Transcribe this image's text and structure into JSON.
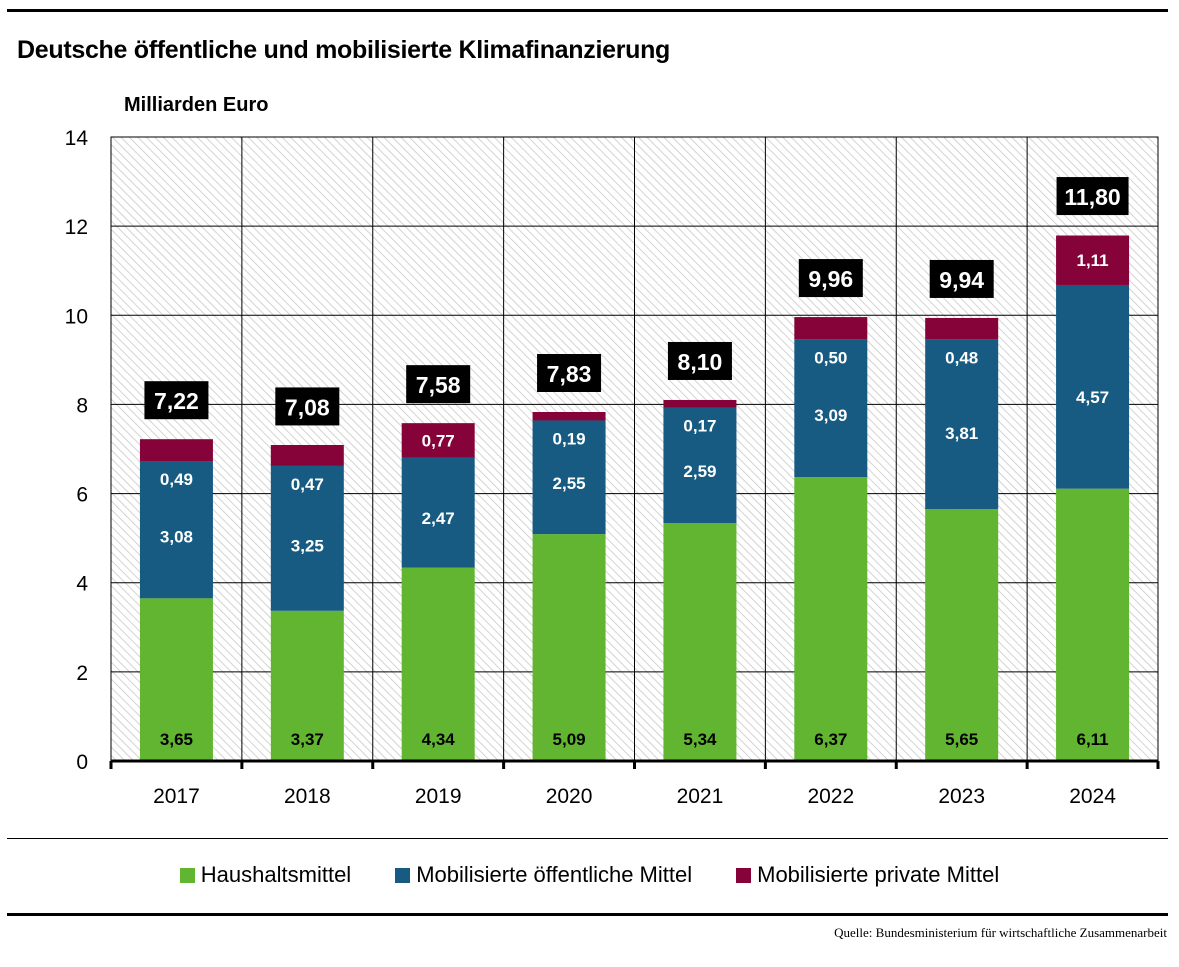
{
  "title": "Deutsche öffentliche und mobilisierte Klimafinanzierung",
  "source": "Quelle: Bundesministerium für wirtschaftliche Zusammenarbeit",
  "colors": {
    "haushalt": "#62b530",
    "oeffentlich": "#175b82",
    "privat": "#86033a",
    "total_box": "#000000"
  },
  "chart_data": {
    "type": "bar",
    "stacked": true,
    "title": "Deutsche öffentliche und mobilisierte Klimafinanzierung",
    "ylabel": "Milliarden Euro",
    "xlabel": "",
    "ylim": [
      0,
      14
    ],
    "yticks": [
      0,
      2,
      4,
      6,
      8,
      10,
      12,
      14
    ],
    "grid": true,
    "legend_position": "bottom",
    "categories": [
      "2017",
      "2018",
      "2019",
      "2020",
      "2021",
      "2022",
      "2023",
      "2024"
    ],
    "series": [
      {
        "name": "Haushaltsmittel",
        "color_key": "haushalt",
        "values": [
          3.65,
          3.37,
          4.34,
          5.09,
          5.34,
          6.37,
          5.65,
          6.11
        ],
        "labels": [
          "3,65",
          "3,37",
          "4,34",
          "5,09",
          "5,34",
          "6,37",
          "5,65",
          "6,11"
        ]
      },
      {
        "name": "Mobilisierte öffentliche Mittel",
        "color_key": "oeffentlich",
        "values": [
          3.08,
          3.25,
          2.47,
          2.55,
          2.59,
          3.09,
          3.81,
          4.57
        ],
        "labels": [
          "3,08",
          "3,25",
          "2,47",
          "2,55",
          "2,59",
          "3,09",
          "3,81",
          "4,57"
        ]
      },
      {
        "name": "Mobilisierte private Mittel",
        "color_key": "privat",
        "values": [
          0.49,
          0.47,
          0.77,
          0.19,
          0.17,
          0.5,
          0.48,
          1.11
        ],
        "labels": [
          "0,49",
          "0,47",
          "0,77",
          "0,19",
          "0,17",
          "0,50",
          "0,48",
          "1,11"
        ]
      }
    ],
    "totals": [
      7.22,
      7.08,
      7.58,
      7.83,
      8.1,
      9.96,
      9.94,
      11.8
    ],
    "total_labels": [
      "7,22",
      "7,08",
      "7,58",
      "7,83",
      "8,10",
      "9,96",
      "9,94",
      "11,80"
    ]
  }
}
